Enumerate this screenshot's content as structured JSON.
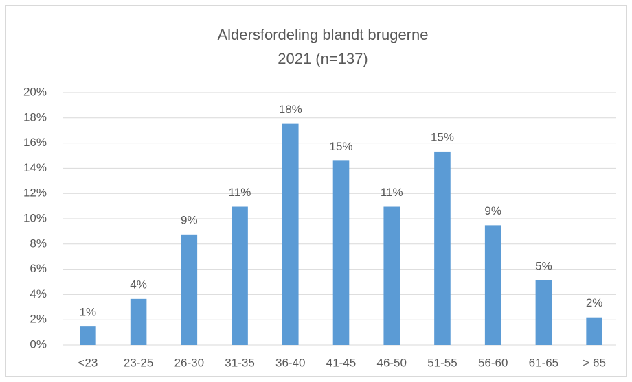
{
  "chart_data": {
    "type": "bar",
    "title": "Aldersfordeling blandt brugerne",
    "subtitle": "2021 (n=137)",
    "categories": [
      "<23",
      "23-25",
      "26-30",
      "31-35",
      "36-40",
      "41-45",
      "46-50",
      "51-55",
      "56-60",
      "61-65",
      "> 65"
    ],
    "values": [
      1.46,
      3.65,
      8.76,
      10.95,
      17.52,
      14.6,
      10.95,
      15.33,
      9.49,
      5.11,
      2.19
    ],
    "value_labels": [
      "1%",
      "4%",
      "9%",
      "11%",
      "18%",
      "15%",
      "11%",
      "15%",
      "9%",
      "5%",
      "2%"
    ],
    "color": "#5b9bd5",
    "ylim": [
      0,
      20
    ],
    "yticks": [
      {
        "value": 0,
        "label": "0%"
      },
      {
        "value": 2,
        "label": "2%"
      },
      {
        "value": 4,
        "label": "4%"
      },
      {
        "value": 6,
        "label": "6%"
      },
      {
        "value": 8,
        "label": "8%"
      },
      {
        "value": 10,
        "label": "10%"
      },
      {
        "value": 12,
        "label": "12%"
      },
      {
        "value": 14,
        "label": "14%"
      },
      {
        "value": 16,
        "label": "16%"
      },
      {
        "value": 18,
        "label": "18%"
      },
      {
        "value": 20,
        "label": "20%"
      }
    ],
    "grid": true
  }
}
